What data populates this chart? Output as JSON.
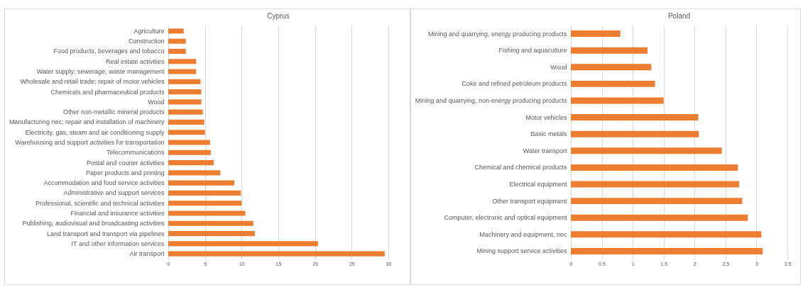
{
  "chart_data": [
    {
      "type": "bar",
      "orientation": "horizontal",
      "title": "Cyprus",
      "categories": [
        "Agriculture",
        "Construction",
        "Food products, beverages and tobacco",
        "Real estate activities",
        "Water supply; sewerage, waste management",
        "Wholesale and retail trade; repair of motor vehicles",
        "Chemicals and pharmaceutical products",
        "Wood",
        "Other non-metallic mineral products",
        "Manufacturing nec; repair and installation of machinery",
        "Electricity, gas, steam and air conditioning supply",
        "Warehousing and support activities for transportation",
        "Telecommunications",
        "Postal and courier activities",
        "Paper products and printing",
        "Accommodation and food service activities",
        "Administrative and support services",
        "Professional, scientific and technical activities",
        "Financial and insurance activities",
        "Publishing, audiovisual and broadcasting activities",
        "Land transport and transport via pipelines",
        "IT and other information services",
        "Air transport"
      ],
      "series": [
        {
          "color": "#ed7d31",
          "values": [
            2.1,
            2.4,
            2.4,
            3.8,
            3.8,
            4.4,
            4.5,
            4.5,
            4.7,
            4.9,
            5.0,
            5.7,
            5.8,
            6.2,
            7.1,
            9.0,
            9.9,
            10.0,
            10.5,
            11.6,
            11.8,
            20.4,
            29.5
          ]
        }
      ],
      "xlim": [
        0,
        30
      ],
      "xticks": [
        0,
        5,
        10,
        15,
        20,
        25,
        30
      ],
      "grid": "x"
    },
    {
      "type": "bar",
      "orientation": "horizontal",
      "title": "Poland",
      "categories": [
        "Mining and quarrying, energy producing products",
        "Fishing and aquaculture",
        "Wood",
        "Coke and refined petroleum products",
        "Mining and quarrying, non-energy producing products",
        "Motor vehicles",
        "Basic metals",
        "Water transport",
        "Chemical and chemical products",
        "Electrical equipment",
        "Other transport equipment",
        "Computer, electronic and optical equipment",
        "Machinery and equipment, nec",
        "Mining support service activities"
      ],
      "series": [
        {
          "color": "#ed7d31",
          "values": [
            0.8,
            1.24,
            1.3,
            1.36,
            1.5,
            2.06,
            2.07,
            2.44,
            2.7,
            2.72,
            2.77,
            2.86,
            3.08,
            3.1
          ]
        }
      ],
      "xlim": [
        0,
        3.5
      ],
      "xticks": [
        0,
        0.5,
        1,
        1.5,
        2,
        2.5,
        3,
        3.5
      ],
      "grid": "x"
    }
  ]
}
